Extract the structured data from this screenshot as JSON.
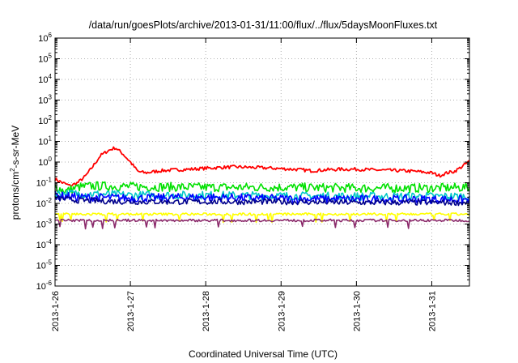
{
  "chart_data": {
    "type": "line",
    "title": "/data/run/goesPlots/archive/2013-01-31/11:00/flux/../flux/5daysMoonFluxes.txt",
    "xlabel": "Coordinated Universal Time (UTC)",
    "ylabel": "protons/cm2-s-sr-MeV",
    "ylabel_parts": {
      "base": "protons/cm",
      "sup": "2",
      "rest": "-s-sr-MeV"
    },
    "y_scale": "log",
    "ylim_exp": [
      -6,
      6
    ],
    "y_tick_base": "10",
    "y_tick_exponents": [
      "-6",
      "-5",
      "-4",
      "-3",
      "-2",
      "-1",
      "0",
      "1",
      "2",
      "3",
      "4",
      "5",
      "6"
    ],
    "xlim": [
      "2013-01-26",
      "2013-01-31 12:00"
    ],
    "x_tick_labels": [
      "2013-1-26",
      "2013-1-27",
      "2013-1-28",
      "2013-1-29",
      "2013-1-30",
      "2013-1-31"
    ],
    "grid": true,
    "series": [
      {
        "color": "#ff0000",
        "points": [
          [
            0.0,
            0.15
          ],
          [
            0.1,
            0.1
          ],
          [
            0.2,
            0.07
          ],
          [
            0.3,
            0.1
          ],
          [
            0.4,
            0.2
          ],
          [
            0.5,
            0.6
          ],
          [
            0.6,
            2.0
          ],
          [
            0.7,
            3.5
          ],
          [
            0.8,
            5.0
          ],
          [
            0.9,
            2.5
          ],
          [
            1.0,
            1.0
          ],
          [
            1.1,
            0.35
          ],
          [
            1.2,
            0.3
          ],
          [
            1.4,
            0.38
          ],
          [
            1.6,
            0.42
          ],
          [
            1.8,
            0.45
          ],
          [
            2.0,
            0.5
          ],
          [
            2.2,
            0.55
          ],
          [
            2.4,
            0.58
          ],
          [
            2.6,
            0.55
          ],
          [
            2.8,
            0.52
          ],
          [
            3.0,
            0.48
          ],
          [
            3.2,
            0.44
          ],
          [
            3.4,
            0.38
          ],
          [
            3.6,
            0.42
          ],
          [
            3.8,
            0.45
          ],
          [
            4.0,
            0.45
          ],
          [
            4.2,
            0.42
          ],
          [
            4.4,
            0.4
          ],
          [
            4.6,
            0.38
          ],
          [
            4.8,
            0.35
          ],
          [
            5.0,
            0.3
          ],
          [
            5.1,
            0.22
          ],
          [
            5.2,
            0.3
          ],
          [
            5.3,
            0.35
          ],
          [
            5.4,
            0.6
          ],
          [
            5.5,
            1.1
          ]
        ]
      },
      {
        "color": "#00e000",
        "points": [
          [
            0.0,
            0.06
          ],
          [
            0.15,
            0.04
          ],
          [
            0.3,
            0.06
          ],
          [
            0.5,
            0.07
          ],
          [
            1.0,
            0.065
          ],
          [
            2.0,
            0.06
          ],
          [
            3.0,
            0.06
          ],
          [
            4.0,
            0.055
          ],
          [
            5.0,
            0.055
          ],
          [
            5.5,
            0.06
          ]
        ]
      },
      {
        "color": "#00c8c8",
        "points": [
          [
            0.0,
            0.03
          ],
          [
            0.3,
            0.03
          ],
          [
            1.0,
            0.025
          ],
          [
            2.0,
            0.025
          ],
          [
            3.0,
            0.023
          ],
          [
            4.0,
            0.022
          ],
          [
            5.0,
            0.022
          ],
          [
            5.5,
            0.022
          ]
        ]
      },
      {
        "color": "#0000ff",
        "points": [
          [
            0.0,
            0.025
          ],
          [
            0.3,
            0.02
          ],
          [
            1.0,
            0.018
          ],
          [
            2.0,
            0.02
          ],
          [
            3.0,
            0.017
          ],
          [
            4.0,
            0.016
          ],
          [
            5.0,
            0.016
          ],
          [
            5.5,
            0.015
          ]
        ]
      },
      {
        "color": "#00008b",
        "points": [
          [
            0.0,
            0.018
          ],
          [
            0.3,
            0.014
          ],
          [
            1.0,
            0.012
          ],
          [
            2.0,
            0.012
          ],
          [
            3.0,
            0.012
          ],
          [
            4.0,
            0.011
          ],
          [
            5.0,
            0.011
          ],
          [
            5.5,
            0.011
          ]
        ]
      },
      {
        "color": "#ffff00",
        "points": [
          [
            0.0,
            0.003
          ],
          [
            1.0,
            0.003
          ],
          [
            2.0,
            0.003
          ],
          [
            3.0,
            0.003
          ],
          [
            4.0,
            0.003
          ],
          [
            5.0,
            0.003
          ],
          [
            5.5,
            0.003
          ]
        ]
      },
      {
        "color": "#8b2a6b",
        "points": [
          [
            0.0,
            0.0015
          ],
          [
            1.0,
            0.0015
          ],
          [
            2.0,
            0.0015
          ],
          [
            3.0,
            0.0015
          ],
          [
            4.0,
            0.0015
          ],
          [
            5.0,
            0.0015
          ],
          [
            5.5,
            0.0015
          ]
        ]
      }
    ]
  }
}
